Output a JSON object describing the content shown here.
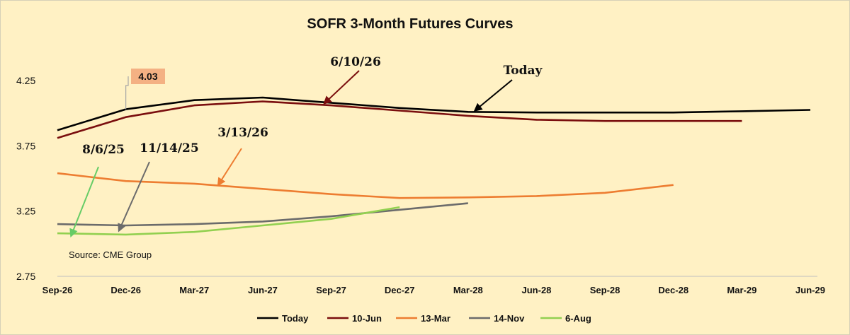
{
  "source_note": "Source: CME Group",
  "chart_data": {
    "type": "line",
    "title": "SOFR 3-Month Futures Curves",
    "xlabel": "",
    "ylabel": "",
    "categories": [
      "Sep-26",
      "Dec-26",
      "Mar-27",
      "Jun-27",
      "Sep-27",
      "Dec-27",
      "Mar-28",
      "Jun-28",
      "Sep-28",
      "Dec-28",
      "Mar-29",
      "Jun-29"
    ],
    "y_ticks": [
      "4.25",
      "3.75",
      "3.25",
      "2.75"
    ],
    "ylim": [
      2.75,
      4.5
    ],
    "grid": false,
    "legend_position": "bottom",
    "series": [
      {
        "name": "Today",
        "color": "#000000",
        "values": [
          3.87,
          4.03,
          4.1,
          4.12,
          4.08,
          4.04,
          4.01,
          4.005,
          4.005,
          4.005,
          4.015,
          4.025
        ]
      },
      {
        "name": "10-Jun",
        "color": "#7a0e0e",
        "values": [
          3.81,
          3.97,
          4.06,
          4.09,
          4.06,
          4.02,
          3.98,
          3.95,
          3.94,
          3.94,
          3.94,
          null
        ]
      },
      {
        "name": "13-Mar",
        "color": "#ed7d31",
        "values": [
          3.54,
          3.48,
          3.46,
          3.42,
          3.38,
          3.35,
          3.355,
          3.365,
          3.39,
          3.45,
          null,
          null
        ]
      },
      {
        "name": "14-Nov",
        "color": "#6b6b6b",
        "values": [
          3.15,
          3.14,
          3.15,
          3.17,
          3.21,
          3.26,
          3.31,
          null,
          null,
          null,
          null,
          null
        ]
      },
      {
        "name": "6-Aug",
        "color": "#92d050",
        "values": [
          3.08,
          3.07,
          3.09,
          3.14,
          3.19,
          3.28,
          null,
          null,
          null,
          null,
          null,
          null
        ]
      }
    ],
    "callout": {
      "label": "4.03",
      "series": "Today",
      "category": "Dec-26",
      "value": 4.03,
      "fill": "#f4b183"
    },
    "annotations": [
      {
        "text": "Today",
        "series": "Today",
        "color": "#000000"
      },
      {
        "text": "6/10/26",
        "series": "10-Jun",
        "color": "#7a0e0e"
      },
      {
        "text": "3/13/26",
        "series": "13-Mar",
        "color": "#ed7d31"
      },
      {
        "text": "11/14/25",
        "series": "14-Nov",
        "color": "#6b6b6b"
      },
      {
        "text": "8/6/25",
        "series": "6-Aug",
        "color": "#66cc66"
      }
    ]
  }
}
